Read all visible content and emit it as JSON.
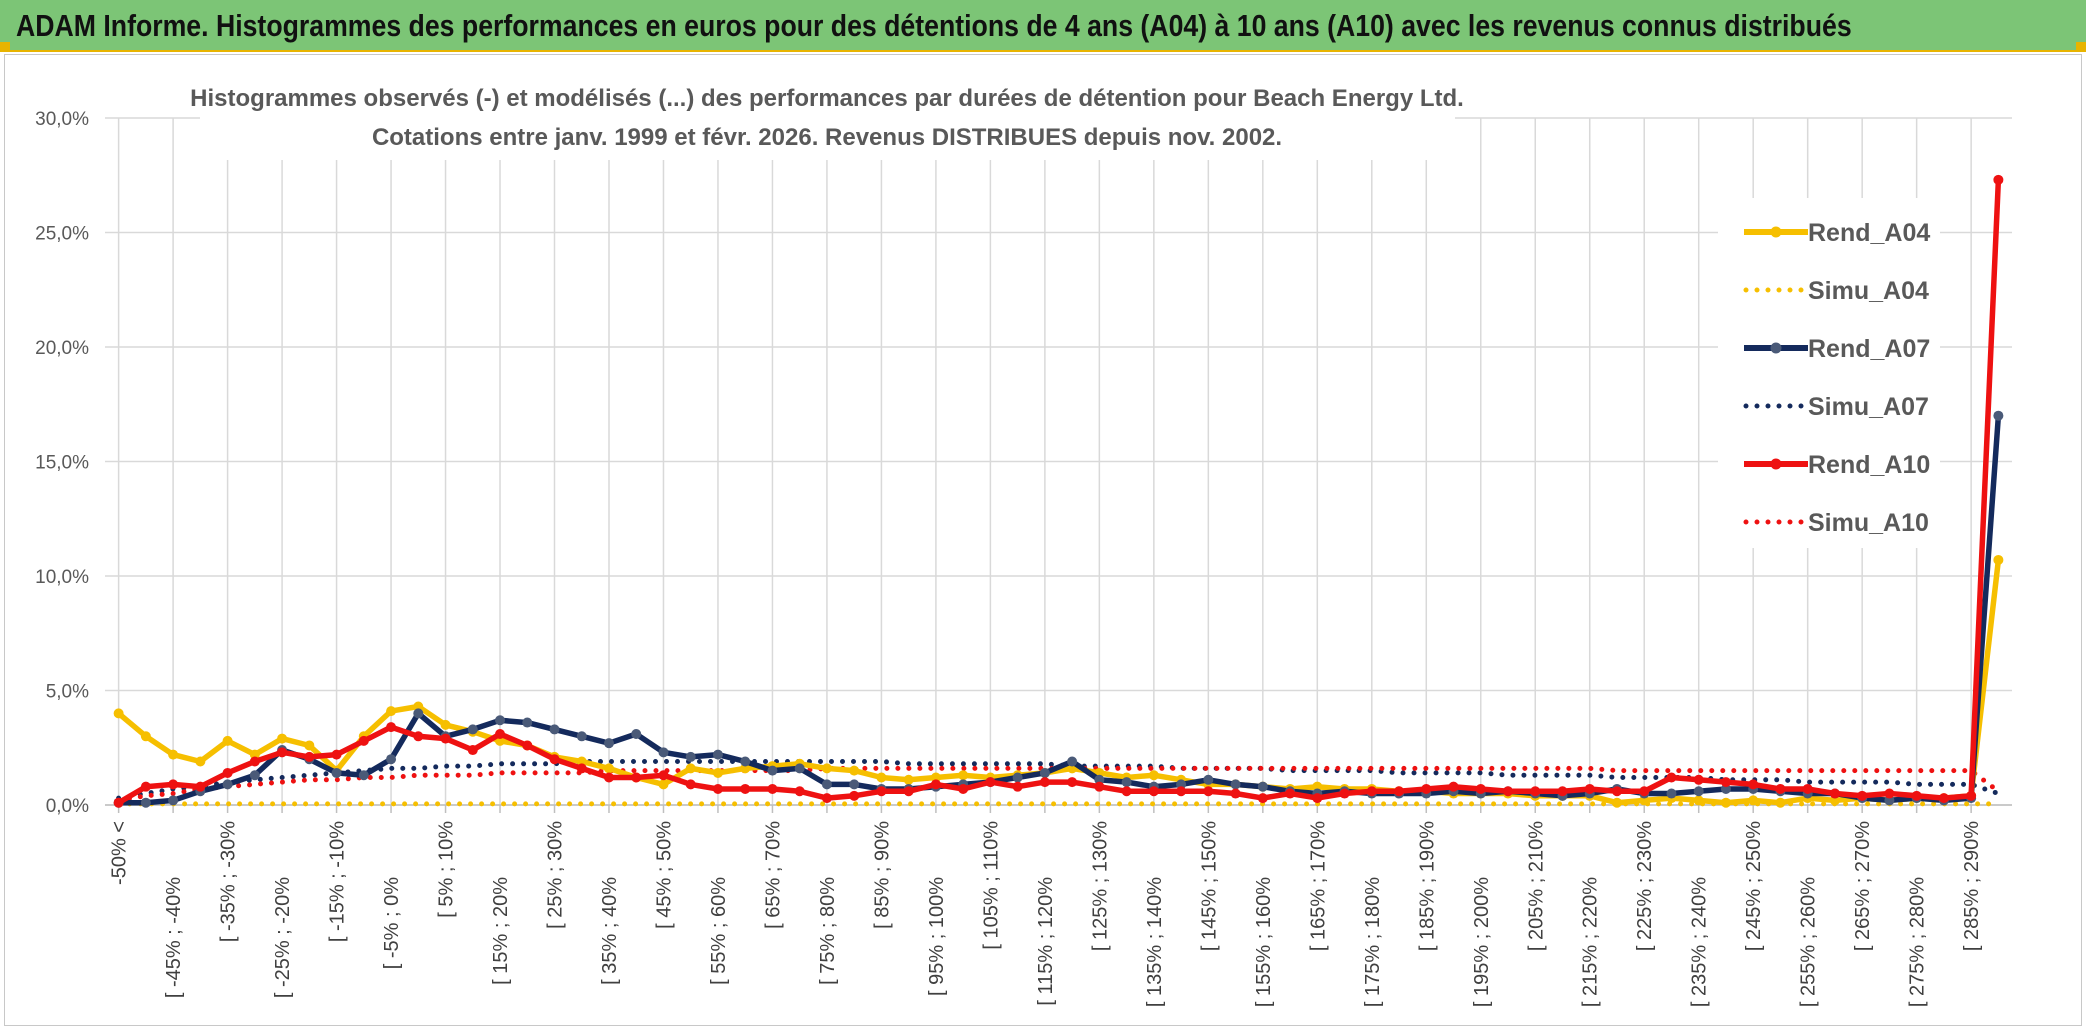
{
  "header": {
    "title": "ADAM Informe. Histogrammes des performances en euros pour des détentions de 4 ans (A04) à 10 ans (A10) avec les revenus connus distribués"
  },
  "chart_data": {
    "type": "line",
    "title_line1": "Histogrammes observés (-) et modélisés (...) des performances par durées de détention pour Beach Energy Ltd.",
    "title_line2": "Cotations entre janv. 1999 et févr. 2026. Revenus DISTRIBUES depuis nov. 2002.",
    "xlabel": "",
    "ylabel": "",
    "ylim": [
      0,
      30
    ],
    "y_ticks": [
      "0,0%",
      "5,0%",
      "10,0%",
      "15,0%",
      "20,0%",
      "25,0%",
      "30,0%"
    ],
    "grid": true,
    "legend_position": "top-right",
    "x_tick_labels": [
      "-50% <",
      "[ -45% ; -40%",
      "[ -35% ; -30%",
      "[ -25% ; -20%",
      "[ -15% ; -10%",
      "[ -5% ; 0%",
      "[ 5% ; 10%",
      "[ 15% ; 20%",
      "[ 25% ; 30%",
      "[ 35% ; 40%",
      "[ 45% ; 50%",
      "[ 55% ; 60%",
      "[ 65% ; 70%",
      "[ 75% ; 80%",
      "[ 85% ; 90%",
      "[ 95% ; 100%",
      "[ 105% ; 110%",
      "[ 115% ; 120%",
      "[ 125% ; 130%",
      "[ 135% ; 140%",
      "[ 145% ; 150%",
      "[ 155% ; 160%",
      "[ 165% ; 170%",
      "[ 175% ; 180%",
      "[ 185% ; 190%",
      "[ 195% ; 200%",
      "[ 205% ; 210%",
      "[ 215% ; 220%",
      "[ 225% ; 230%",
      "[ 235% ; 240%",
      "[ 245% ; 250%",
      "[ 255% ; 260%",
      "[ 265% ; 270%",
      "[ 275% ; 280%",
      "[ 285% ; 290%"
    ],
    "x_tick_every": 2,
    "n_points": 70,
    "series": [
      {
        "name": "Rend_A04",
        "color": "#f6bf00",
        "style": "solid",
        "values": [
          4.0,
          3.0,
          2.2,
          1.9,
          2.8,
          2.2,
          2.9,
          2.6,
          1.5,
          3.0,
          4.1,
          4.3,
          3.5,
          3.2,
          2.8,
          2.6,
          2.1,
          1.9,
          1.6,
          1.2,
          0.9,
          1.6,
          1.4,
          1.6,
          1.7,
          1.8,
          1.6,
          1.5,
          1.2,
          1.1,
          1.2,
          1.3,
          1.2,
          1.3,
          1.4,
          1.6,
          1.4,
          1.2,
          1.3,
          1.1,
          0.9,
          0.9,
          0.8,
          0.7,
          0.8,
          0.7,
          0.7,
          0.6,
          0.6,
          0.5,
          0.5,
          0.5,
          0.4,
          0.4,
          0.4,
          0.1,
          0.2,
          0.3,
          0.2,
          0.1,
          0.2,
          0.1,
          0.3,
          0.2,
          0.3,
          0.2,
          0.3,
          0.3,
          0.4,
          10.7
        ]
      },
      {
        "name": "Simu_A04",
        "color": "#f6bf00",
        "style": "dotted",
        "values": [
          0.05,
          0.05,
          0.05,
          0.05,
          0.05,
          0.05,
          0.05,
          0.05,
          0.05,
          0.05,
          0.05,
          0.05,
          0.05,
          0.05,
          0.05,
          0.05,
          0.05,
          0.05,
          0.05,
          0.05,
          0.05,
          0.05,
          0.05,
          0.05,
          0.05,
          0.05,
          0.05,
          0.05,
          0.05,
          0.05,
          0.05,
          0.05,
          0.05,
          0.05,
          0.05,
          0.05,
          0.05,
          0.05,
          0.05,
          0.05,
          0.05,
          0.05,
          0.05,
          0.05,
          0.05,
          0.05,
          0.05,
          0.05,
          0.05,
          0.05,
          0.05,
          0.05,
          0.05,
          0.05,
          0.05,
          0.05,
          0.05,
          0.05,
          0.05,
          0.05,
          0.05,
          0.05,
          0.05,
          0.05,
          0.05,
          0.05,
          0.05,
          0.05,
          0.05,
          0.05
        ]
      },
      {
        "name": "Rend_A07",
        "color": "#142a5c",
        "style": "solid",
        "values": [
          0.1,
          0.1,
          0.2,
          0.6,
          0.9,
          1.3,
          2.4,
          2.0,
          1.4,
          1.3,
          2.0,
          4.0,
          3.0,
          3.3,
          3.7,
          3.6,
          3.3,
          3.0,
          2.7,
          3.1,
          2.3,
          2.1,
          2.2,
          1.9,
          1.5,
          1.6,
          0.9,
          0.9,
          0.7,
          0.7,
          0.8,
          0.9,
          1.0,
          1.2,
          1.4,
          1.9,
          1.1,
          1.0,
          0.8,
          0.9,
          1.1,
          0.9,
          0.8,
          0.6,
          0.5,
          0.6,
          0.5,
          0.5,
          0.5,
          0.6,
          0.5,
          0.6,
          0.5,
          0.4,
          0.5,
          0.7,
          0.5,
          0.5,
          0.6,
          0.7,
          0.7,
          0.6,
          0.5,
          0.5,
          0.3,
          0.2,
          0.3,
          0.2,
          0.3,
          17.0
        ]
      },
      {
        "name": "Simu_A07",
        "color": "#142a5c",
        "style": "dotted",
        "values": [
          0.3,
          0.5,
          0.7,
          0.8,
          1.0,
          1.1,
          1.2,
          1.3,
          1.4,
          1.5,
          1.6,
          1.6,
          1.7,
          1.7,
          1.8,
          1.8,
          1.8,
          1.9,
          1.9,
          1.9,
          1.9,
          1.9,
          1.9,
          1.9,
          1.9,
          1.9,
          1.9,
          1.9,
          1.9,
          1.8,
          1.8,
          1.8,
          1.8,
          1.8,
          1.8,
          1.7,
          1.7,
          1.7,
          1.7,
          1.6,
          1.6,
          1.6,
          1.6,
          1.5,
          1.5,
          1.5,
          1.5,
          1.4,
          1.4,
          1.4,
          1.4,
          1.3,
          1.3,
          1.3,
          1.3,
          1.2,
          1.2,
          1.2,
          1.2,
          1.1,
          1.1,
          1.1,
          1.0,
          1.0,
          1.0,
          1.0,
          0.9,
          0.9,
          0.9,
          0.5
        ]
      },
      {
        "name": "Rend_A10",
        "color": "#ee1111",
        "style": "solid",
        "values": [
          0.1,
          0.8,
          0.9,
          0.8,
          1.4,
          1.9,
          2.3,
          2.1,
          2.2,
          2.8,
          3.4,
          3.0,
          2.9,
          2.4,
          3.1,
          2.6,
          2.0,
          1.6,
          1.2,
          1.2,
          1.3,
          0.9,
          0.7,
          0.7,
          0.7,
          0.6,
          0.3,
          0.4,
          0.6,
          0.6,
          0.9,
          0.7,
          1.0,
          0.8,
          1.0,
          1.0,
          0.8,
          0.6,
          0.6,
          0.6,
          0.6,
          0.5,
          0.3,
          0.5,
          0.3,
          0.5,
          0.6,
          0.6,
          0.7,
          0.8,
          0.7,
          0.6,
          0.6,
          0.6,
          0.7,
          0.6,
          0.6,
          1.2,
          1.1,
          1.0,
          0.9,
          0.7,
          0.7,
          0.5,
          0.4,
          0.5,
          0.4,
          0.3,
          0.4,
          27.3
        ]
      },
      {
        "name": "Simu_A10",
        "color": "#ee1111",
        "style": "dotted",
        "values": [
          0.2,
          0.4,
          0.5,
          0.7,
          0.8,
          0.9,
          1.0,
          1.1,
          1.1,
          1.2,
          1.2,
          1.3,
          1.3,
          1.3,
          1.4,
          1.4,
          1.4,
          1.4,
          1.5,
          1.5,
          1.5,
          1.5,
          1.5,
          1.5,
          1.5,
          1.5,
          1.6,
          1.6,
          1.6,
          1.6,
          1.6,
          1.6,
          1.6,
          1.6,
          1.6,
          1.6,
          1.6,
          1.6,
          1.6,
          1.6,
          1.6,
          1.6,
          1.6,
          1.6,
          1.6,
          1.6,
          1.6,
          1.6,
          1.6,
          1.6,
          1.6,
          1.6,
          1.6,
          1.6,
          1.6,
          1.5,
          1.5,
          1.5,
          1.5,
          1.5,
          1.5,
          1.5,
          1.5,
          1.5,
          1.5,
          1.5,
          1.5,
          1.5,
          1.5,
          0.6
        ]
      }
    ]
  }
}
